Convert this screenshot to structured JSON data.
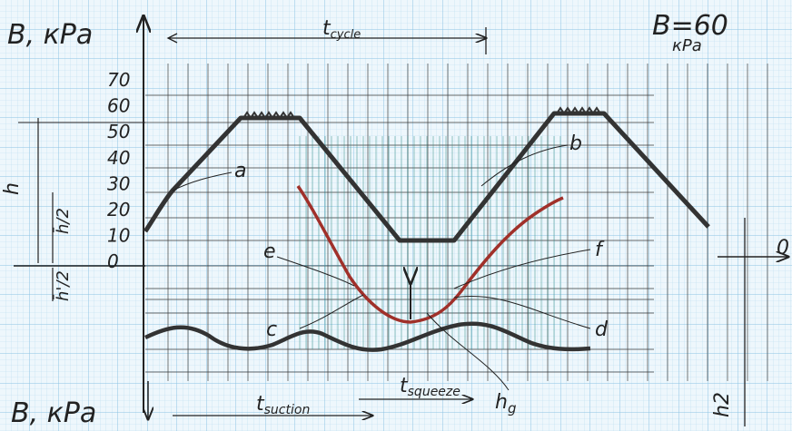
{
  "axis_label_top": "B, кPa",
  "axis_label_bottom": "B, кPa",
  "cycle_label": {
    "main": "t",
    "sub": "cycle"
  },
  "setting": {
    "value": "B=60",
    "unit": "кPa"
  },
  "scale_labels": [
    "70",
    "60",
    "50",
    "40",
    "30",
    "20",
    "10",
    "0"
  ],
  "height_label": "h",
  "half_height_upper": {
    "num": "h̄",
    "den": "2"
  },
  "half_height_lower": {
    "num": "h̄'",
    "den": "2"
  },
  "points": {
    "a": "a",
    "b": "b",
    "e": "e",
    "f": "f",
    "c": "c",
    "d": "d"
  },
  "zero_right": "0",
  "hg_label": {
    "main": "h",
    "sub": "g"
  },
  "h2_label": "h2",
  "suction_label": {
    "main": "t",
    "sub": "suction"
  },
  "squeeze_label": {
    "main": "t",
    "sub": "squeeze"
  }
}
